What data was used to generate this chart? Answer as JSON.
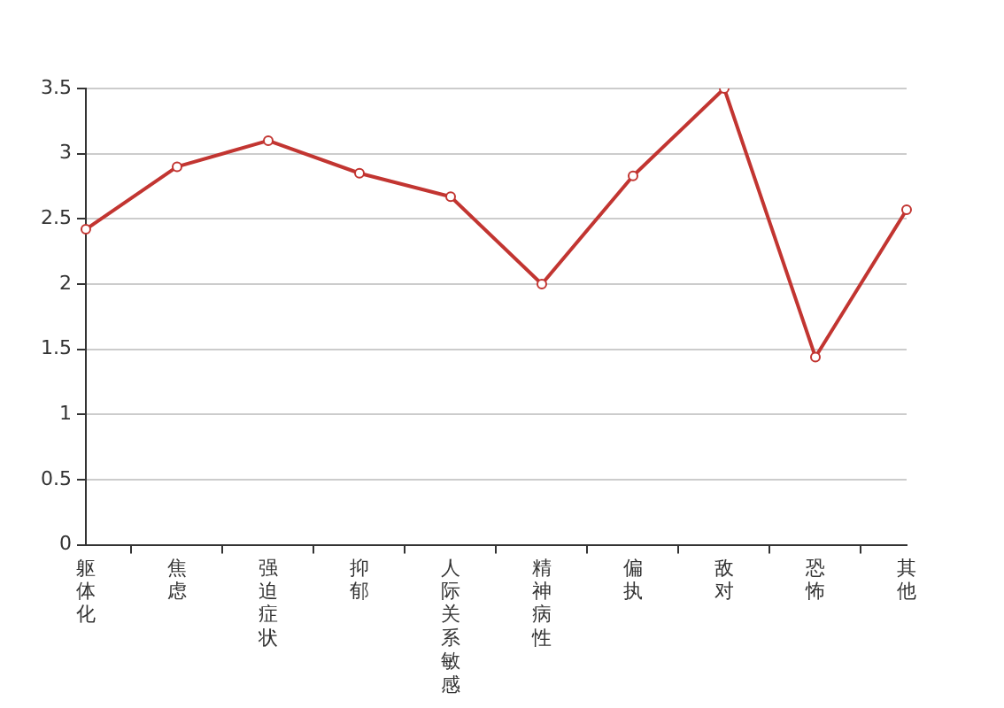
{
  "chart_data": {
    "type": "line",
    "categories": [
      "躯体化",
      "焦虑",
      "强迫症状",
      "抑郁",
      "人际关系敏感",
      "精神病性",
      "偏执",
      "敌对",
      "恐怖",
      "其他"
    ],
    "series": [
      {
        "color": "#c23531",
        "values": [
          2.42,
          2.9,
          3.1,
          2.85,
          2.67,
          2.0,
          2.83,
          3.5,
          1.44,
          2.57
        ]
      }
    ],
    "ylim": [
      0,
      3.5
    ],
    "yticks": [
      0,
      0.5,
      1,
      1.5,
      2,
      2.5,
      3,
      3.5
    ],
    "grid": "y",
    "marker": "circle",
    "line_style": "solid",
    "legend": false
  }
}
